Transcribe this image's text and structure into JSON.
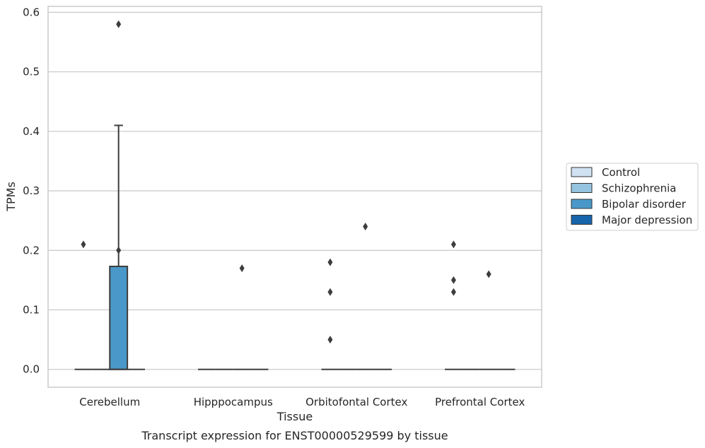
{
  "chart_data": {
    "type": "box",
    "xlabel": "Tissue",
    "ylabel": "TPMs",
    "caption": "Transcript expression for ENST00000529599 by tissue",
    "categories": [
      "Cerebellum",
      "Hipppocampus",
      "Orbitofontal Cortex",
      "Prefrontal Cortex"
    ],
    "ylim": [
      -0.03,
      0.61
    ],
    "yticks": [
      0.0,
      0.1,
      0.2,
      0.3,
      0.4,
      0.5,
      0.6
    ],
    "ytick_labels": [
      "0.0",
      "0.1",
      "0.2",
      "0.3",
      "0.4",
      "0.5",
      "0.6"
    ],
    "grid": "horizontal",
    "legend_position": "right",
    "series": [
      {
        "name": "Control",
        "color": "#d0e1f2",
        "boxes": [
          {
            "category": "Cerebellum",
            "q1": 0.0,
            "median": 0.0,
            "q3": 0.0,
            "whisker_low": 0.0,
            "whisker_high": 0.0,
            "outliers": [
              0.21
            ]
          },
          {
            "category": "Hipppocampus",
            "q1": 0.0,
            "median": 0.0,
            "q3": 0.0,
            "whisker_low": 0.0,
            "whisker_high": 0.0,
            "outliers": []
          },
          {
            "category": "Orbitofontal Cortex",
            "q1": 0.0,
            "median": 0.0,
            "q3": 0.0,
            "whisker_low": 0.0,
            "whisker_high": 0.0,
            "outliers": [
              0.18,
              0.13,
              0.05
            ]
          },
          {
            "category": "Prefrontal Cortex",
            "q1": 0.0,
            "median": 0.0,
            "q3": 0.0,
            "whisker_low": 0.0,
            "whisker_high": 0.0,
            "outliers": [
              0.21,
              0.15,
              0.13
            ]
          }
        ]
      },
      {
        "name": "Schizophrenia",
        "color": "#94c4df",
        "boxes": [
          {
            "category": "Cerebellum",
            "q1": 0.0,
            "median": 0.0,
            "q3": 0.0,
            "whisker_low": 0.0,
            "whisker_high": 0.0,
            "outliers": []
          },
          {
            "category": "Hipppocampus",
            "q1": 0.0,
            "median": 0.0,
            "q3": 0.0,
            "whisker_low": 0.0,
            "whisker_high": 0.0,
            "outliers": []
          },
          {
            "category": "Orbitofontal Cortex",
            "q1": 0.0,
            "median": 0.0,
            "q3": 0.0,
            "whisker_low": 0.0,
            "whisker_high": 0.0,
            "outliers": []
          },
          {
            "category": "Prefrontal Cortex",
            "q1": 0.0,
            "median": 0.0,
            "q3": 0.0,
            "whisker_low": 0.0,
            "whisker_high": 0.0,
            "outliers": []
          }
        ]
      },
      {
        "name": "Bipolar disorder",
        "color": "#4a98c9",
        "boxes": [
          {
            "category": "Cerebellum",
            "q1": 0.0,
            "median": 0.0,
            "q3": 0.173,
            "whisker_low": 0.0,
            "whisker_high": 0.41,
            "outliers": [
              0.58,
              0.2
            ]
          },
          {
            "category": "Hipppocampus",
            "q1": 0.0,
            "median": 0.0,
            "q3": 0.0,
            "whisker_low": 0.0,
            "whisker_high": 0.0,
            "outliers": [
              0.17
            ]
          },
          {
            "category": "Orbitofontal Cortex",
            "q1": 0.0,
            "median": 0.0,
            "q3": 0.0,
            "whisker_low": 0.0,
            "whisker_high": 0.0,
            "outliers": [
              0.24
            ]
          },
          {
            "category": "Prefrontal Cortex",
            "q1": 0.0,
            "median": 0.0,
            "q3": 0.0,
            "whisker_low": 0.0,
            "whisker_high": 0.0,
            "outliers": [
              0.16
            ]
          }
        ]
      },
      {
        "name": "Major depression",
        "color": "#1764ab",
        "boxes": [
          {
            "category": "Cerebellum",
            "q1": 0.0,
            "median": 0.0,
            "q3": 0.0,
            "whisker_low": 0.0,
            "whisker_high": 0.0,
            "outliers": []
          },
          {
            "category": "Hipppocampus",
            "q1": 0.0,
            "median": 0.0,
            "q3": 0.0,
            "whisker_low": 0.0,
            "whisker_high": 0.0,
            "outliers": []
          },
          {
            "category": "Orbitofontal Cortex",
            "q1": 0.0,
            "median": 0.0,
            "q3": 0.0,
            "whisker_low": 0.0,
            "whisker_high": 0.0,
            "outliers": []
          },
          {
            "category": "Prefrontal Cortex",
            "q1": 0.0,
            "median": 0.0,
            "q3": 0.0,
            "whisker_low": 0.0,
            "whisker_high": 0.0,
            "outliers": []
          }
        ]
      }
    ]
  }
}
